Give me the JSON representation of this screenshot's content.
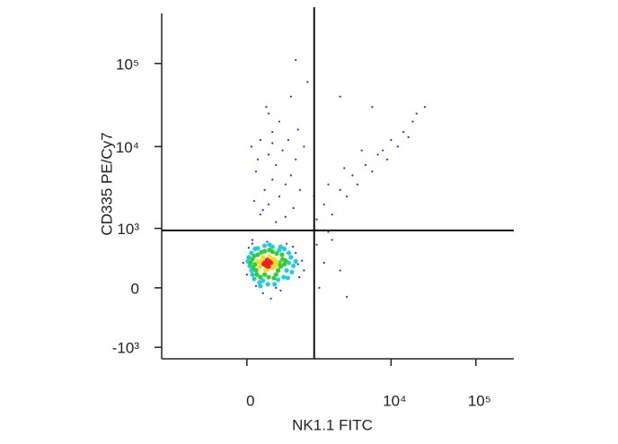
{
  "chart_data": {
    "type": "scatter",
    "scale": "biexponential",
    "xlabel": "NK1.1 FITC",
    "ylabel": "CD335 PE/Cy7",
    "xlim": [
      -2000,
      280000
    ],
    "ylim": [
      -1400,
      400000
    ],
    "xticks": [
      0,
      {
        "value": 10000,
        "label": "10⁴"
      },
      {
        "value": 100000,
        "label": "10⁵"
      }
    ],
    "yticks": [
      {
        "value": -1000,
        "label": "-10³"
      },
      0,
      {
        "value": 1000,
        "label": "10³"
      },
      {
        "value": 10000,
        "label": "10⁴"
      },
      {
        "value": 100000,
        "label": "10⁵"
      }
    ],
    "quadrant": {
      "x": 1210,
      "y": 940
    },
    "series": [
      {
        "color": "#2233cc",
        "x": [
          0,
          750,
          20,
          700,
          100,
          350,
          850,
          60,
          640,
          180,
          420,
          280,
          900,
          -40,
          780,
          520,
          230,
          60,
          150,
          250,
          400,
          200,
          300,
          500,
          100,
          350,
          600,
          250,
          450,
          150,
          700,
          300,
          550,
          80,
          650,
          120,
          400,
          250,
          800,
          900,
          350,
          180,
          500,
          220,
          600,
          50,
          750,
          300,
          1300,
          1600,
          2000,
          2500,
          3000,
          3500,
          4000,
          5000,
          6000,
          7000,
          8000,
          9000,
          10000,
          12000,
          14000,
          16000,
          18000,
          20000,
          1800,
          2800,
          4500,
          1200,
          25000,
          1300,
          1600,
          2000,
          2500,
          1400,
          3000,
          1800,
          700,
          2500,
          6000,
          1000
        ],
        "y": [
          150,
          280,
          540,
          450,
          20,
          0,
          330,
          620,
          560,
          -60,
          -30,
          -120,
          200,
          300,
          120,
          620,
          660,
          700,
          1500,
          2000,
          2500,
          3000,
          4000,
          3500,
          5000,
          6000,
          4500,
          8000,
          9000,
          12000,
          7000,
          15000,
          12000,
          2200,
          1800,
          7000,
          20000,
          25000,
          3000,
          10000,
          1200,
          1700,
          1400,
          30000,
          40000,
          10000,
          16000,
          11000,
          1300,
          2000,
          1500,
          3000,
          2500,
          4500,
          3500,
          6000,
          5000,
          8000,
          9000,
          7000,
          12000,
          10000,
          15000,
          13000,
          20000,
          25000,
          3500,
          5500,
          9000,
          2500,
          30000,
          600,
          300,
          700,
          200,
          0,
          -100,
          900,
          110000,
          40000,
          30000,
          60000
        ]
      },
      {
        "color": "#22ccdd",
        "x": [
          30,
          560,
          50,
          520,
          180,
          300,
          20,
          600,
          120,
          400,
          60,
          650,
          90,
          240,
          470,
          380,
          10,
          560,
          140,
          700,
          420,
          200,
          50,
          620,
          330,
          80,
          260,
          480,
          150,
          540
        ],
        "y": [
          260,
          300,
          450,
          200,
          80,
          560,
          380,
          380,
          530,
          500,
          150,
          260,
          520,
          40,
          120,
          90,
          320,
          450,
          60,
          320,
          560,
          580,
          200,
          180,
          40,
          100,
          600,
          520,
          20,
          110
        ]
      },
      {
        "color": "#33cc33",
        "x": [
          90,
          400,
          120,
          380,
          200,
          100,
          450,
          60,
          300,
          160,
          420,
          70,
          250,
          350,
          110,
          480,
          200,
          80,
          440,
          360,
          150,
          40,
          500,
          260,
          320
        ],
        "y": [
          280,
          300,
          420,
          200,
          150,
          200,
          350,
          350,
          470,
          460,
          250,
          240,
          120,
          150,
          150,
          280,
          480,
          400,
          420,
          440,
          120,
          300,
          330,
          500,
          110
        ]
      },
      {
        "color": "#eedd22",
        "x": [
          150,
          320,
          180,
          300,
          210,
          330,
          140,
          260,
          350,
          170,
          290,
          230,
          120,
          360
        ],
        "y": [
          300,
          290,
          380,
          230,
          200,
          350,
          240,
          390,
          260,
          330,
          360,
          210,
          320,
          310
        ]
      },
      {
        "color": "#ee2222",
        "x": [
          200,
          240,
          260,
          220,
          280,
          230,
          190,
          250
        ],
        "y": [
          300,
          280,
          320,
          260,
          300,
          340,
          280,
          250
        ]
      }
    ]
  }
}
